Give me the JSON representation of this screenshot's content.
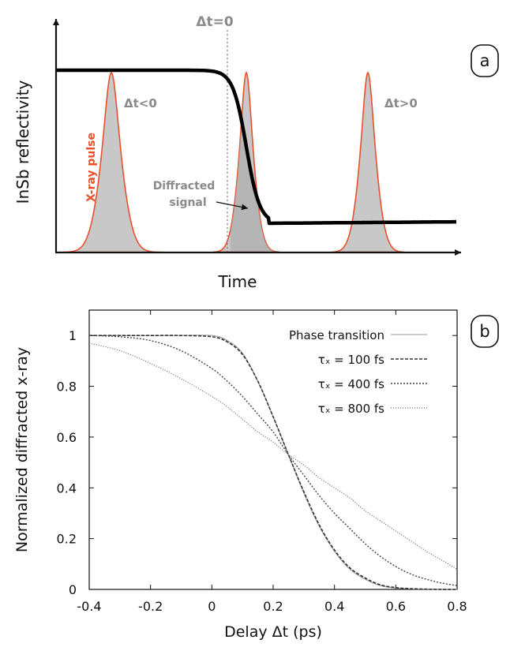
{
  "panel_a": {
    "label": "a",
    "ylabel": "InSb reflectivity",
    "xlabel": "Time",
    "annotations": {
      "dt_zero": "Δt=0",
      "dt_neg": "Δt<0",
      "dt_pos": "Δt>0",
      "xray_pulse": "X-ray pulse",
      "diffracted_line1": "Diffracted",
      "diffracted_line2": "signal"
    },
    "colors": {
      "pulse_outline": "#e8512a",
      "pulse_fill": "#c8c8c8",
      "reflectivity": "#000000",
      "annotation": "#8a8a8a"
    }
  },
  "chart_data": [
    {
      "type": "line",
      "panel": "b",
      "label": "b",
      "xlabel": "Delay Δt (ps)",
      "ylabel": "Normalized diffracted x-ray",
      "xlim": [
        -0.4,
        0.8
      ],
      "ylim": [
        0,
        1.1
      ],
      "xticks": [
        "-0.4",
        "-0.2",
        "0",
        "0.2",
        "0.4",
        "0.6",
        "0.8"
      ],
      "xtick_values": [
        -0.4,
        -0.2,
        0,
        0.2,
        0.4,
        0.6,
        0.8
      ],
      "yticks": [
        "0",
        "0.2",
        "0.4",
        "0.6",
        "0.8",
        "1"
      ],
      "ytick_values": [
        0,
        0.2,
        0.4,
        0.6,
        0.8,
        1
      ],
      "grid": false,
      "legend_position": "top-right",
      "x": [
        -0.4,
        -0.3,
        -0.2,
        -0.1,
        0,
        0.05,
        0.1,
        0.15,
        0.2,
        0.25,
        0.3,
        0.35,
        0.4,
        0.45,
        0.5,
        0.55,
        0.6,
        0.65,
        0.7,
        0.75,
        0.8
      ],
      "series": [
        {
          "name": "Phase transition",
          "values": [
            1,
            1,
            1,
            1,
            1,
            0.98,
            0.93,
            0.82,
            0.68,
            0.53,
            0.38,
            0.25,
            0.15,
            0.08,
            0.04,
            0.015,
            0.005,
            0.002,
            0.001,
            0,
            0
          ]
        },
        {
          "name": "τₓ = 100 fs",
          "values": [
            1,
            1,
            1,
            1,
            0.995,
            0.975,
            0.925,
            0.82,
            0.68,
            0.53,
            0.385,
            0.255,
            0.155,
            0.085,
            0.045,
            0.018,
            0.007,
            0.003,
            0.001,
            0,
            0
          ]
        },
        {
          "name": "τₓ = 400 fs",
          "values": [
            1,
            0.995,
            0.98,
            0.94,
            0.87,
            0.82,
            0.76,
            0.69,
            0.62,
            0.53,
            0.45,
            0.37,
            0.3,
            0.24,
            0.18,
            0.13,
            0.09,
            0.06,
            0.04,
            0.025,
            0.015
          ]
        },
        {
          "name": "τₓ = 800 fs",
          "values": [
            0.97,
            0.94,
            0.89,
            0.83,
            0.76,
            0.72,
            0.67,
            0.62,
            0.58,
            0.53,
            0.49,
            0.44,
            0.4,
            0.36,
            0.31,
            0.27,
            0.23,
            0.19,
            0.15,
            0.115,
            0.08
          ]
        }
      ]
    }
  ]
}
